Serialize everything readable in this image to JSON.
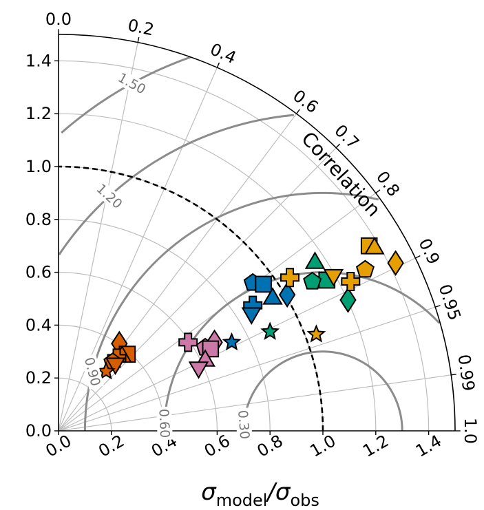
{
  "chart_data": {
    "type": "scatter",
    "subtype": "taylor-diagram",
    "title": "",
    "xlabel": {
      "main": "σ",
      "sub1": "model",
      "sep": "/σ",
      "sub2": "obs"
    },
    "ylabel": "",
    "correlation_label": "Correlation",
    "xlim": [
      0,
      1.5
    ],
    "ylim": [
      0,
      1.5
    ],
    "x_ticks": [
      "0.0",
      "0.2",
      "0.4",
      "0.6",
      "0.8",
      "1.0",
      "1.2",
      "1.4"
    ],
    "y_ticks": [
      "0.0",
      "0.2",
      "0.4",
      "0.6",
      "0.8",
      "1.0",
      "1.2",
      "1.4"
    ],
    "correlation_ticks": [
      "0.0",
      "0.2",
      "0.4",
      "0.6",
      "0.7",
      "0.8",
      "0.9",
      "0.95",
      "0.99",
      "1.0"
    ],
    "rmse_contours": [
      "0.30",
      "0.60",
      "0.90",
      "1.20",
      "1.50"
    ],
    "reference_std": 1.0,
    "grid": true,
    "series": [
      {
        "color": "#d55e00",
        "points": [
          {
            "marker": "diamond",
            "x": 0.23,
            "y": 0.33
          },
          {
            "marker": "square",
            "x": 0.26,
            "y": 0.29
          },
          {
            "marker": "triangle-up",
            "x": 0.24,
            "y": 0.285
          },
          {
            "marker": "plus",
            "x": 0.22,
            "y": 0.275
          },
          {
            "marker": "pentagon",
            "x": 0.205,
            "y": 0.26
          },
          {
            "marker": "triangle-down",
            "x": 0.215,
            "y": 0.25
          },
          {
            "marker": "star",
            "x": 0.18,
            "y": 0.225
          }
        ]
      },
      {
        "color": "#cc79a7",
        "points": [
          {
            "marker": "plus",
            "x": 0.49,
            "y": 0.335
          },
          {
            "marker": "diamond",
            "x": 0.59,
            "y": 0.335
          },
          {
            "marker": "pentagon",
            "x": 0.555,
            "y": 0.315
          },
          {
            "marker": "square",
            "x": 0.575,
            "y": 0.31
          },
          {
            "marker": "triangle-up",
            "x": 0.555,
            "y": 0.27
          },
          {
            "marker": "triangle-down",
            "x": 0.53,
            "y": 0.235
          }
        ]
      },
      {
        "color": "#0072b2",
        "points": [
          {
            "marker": "pentagon",
            "x": 0.735,
            "y": 0.56
          },
          {
            "marker": "square",
            "x": 0.775,
            "y": 0.555
          },
          {
            "marker": "diamond",
            "x": 0.865,
            "y": 0.515
          },
          {
            "marker": "triangle-up",
            "x": 0.81,
            "y": 0.505
          },
          {
            "marker": "plus",
            "x": 0.735,
            "y": 0.475
          },
          {
            "marker": "triangle-down",
            "x": 0.73,
            "y": 0.44
          },
          {
            "marker": "star",
            "x": 0.655,
            "y": 0.335
          }
        ]
      },
      {
        "color": "#009e73",
        "points": [
          {
            "marker": "triangle-up",
            "x": 0.97,
            "y": 0.64
          },
          {
            "marker": "square",
            "x": 1.015,
            "y": 0.57
          },
          {
            "marker": "pentagon",
            "x": 0.96,
            "y": 0.565
          },
          {
            "marker": "diamond",
            "x": 1.095,
            "y": 0.495
          },
          {
            "marker": "star",
            "x": 0.8,
            "y": 0.375
          }
        ]
      },
      {
        "color": "#e69f00",
        "points": [
          {
            "marker": "square",
            "x": 1.175,
            "y": 0.7
          },
          {
            "marker": "triangle-up",
            "x": 1.195,
            "y": 0.695
          },
          {
            "marker": "diamond",
            "x": 1.275,
            "y": 0.635
          },
          {
            "marker": "pentagon",
            "x": 1.16,
            "y": 0.61
          },
          {
            "marker": "triangle-down",
            "x": 1.04,
            "y": 0.585
          },
          {
            "marker": "plus",
            "x": 1.105,
            "y": 0.565
          },
          {
            "marker": "star",
            "x": 0.975,
            "y": 0.365
          }
        ]
      },
      {
        "color": "#e69f00",
        "points": [
          {
            "marker": "plus",
            "x": 0.875,
            "y": 0.58
          }
        ]
      }
    ]
  }
}
